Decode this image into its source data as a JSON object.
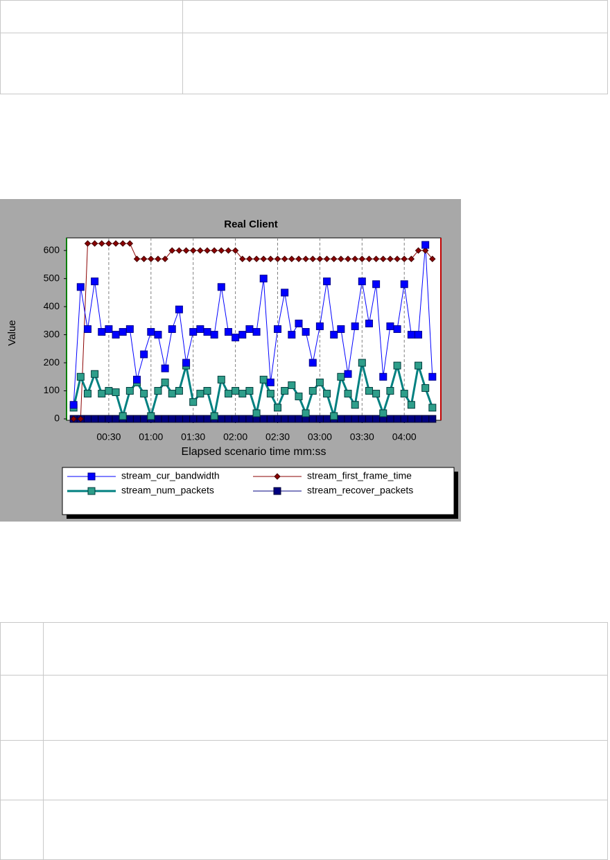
{
  "chart_data": {
    "type": "line",
    "title": "Real Client",
    "y_label": "Value",
    "x_label": "Elapsed scenario time mm:ss",
    "x": [
      5,
      10,
      15,
      20,
      25,
      30,
      35,
      40,
      45,
      50,
      55,
      60,
      65,
      70,
      75,
      80,
      85,
      90,
      95,
      100,
      105,
      110,
      115,
      120,
      125,
      130,
      135,
      140,
      145,
      150,
      155,
      160,
      165,
      170,
      175,
      180,
      185,
      190,
      195,
      200,
      205,
      210,
      215,
      220,
      225,
      230,
      235,
      240,
      245,
      250,
      255,
      260
    ],
    "xlim": [
      0,
      266
    ],
    "xticks": [
      {
        "value": 30,
        "label": "00:30"
      },
      {
        "value": 60,
        "label": "01:00"
      },
      {
        "value": 90,
        "label": "01:30"
      },
      {
        "value": 120,
        "label": "02:00"
      },
      {
        "value": 150,
        "label": "02:30"
      },
      {
        "value": 180,
        "label": "03:00"
      },
      {
        "value": 210,
        "label": "03:30"
      },
      {
        "value": 240,
        "label": "04:00"
      }
    ],
    "ylim": [
      -5,
      645
    ],
    "yticks": [
      0,
      100,
      200,
      300,
      400,
      500,
      600
    ],
    "grid": true,
    "legend": "bottom",
    "series": [
      {
        "name": "stream_cur_bandwidth",
        "color": "#0000ff",
        "marker": "square",
        "values": [
          50,
          470,
          320,
          490,
          310,
          320,
          300,
          310,
          320,
          140,
          230,
          310,
          300,
          180,
          320,
          390,
          200,
          310,
          320,
          310,
          300,
          470,
          310,
          290,
          300,
          320,
          310,
          500,
          130,
          320,
          450,
          300,
          340,
          310,
          200,
          330,
          490,
          300,
          320,
          160,
          330,
          490,
          340,
          480,
          150,
          330,
          320,
          480,
          300,
          300,
          620,
          150
        ]
      },
      {
        "name": "stream_first_frame_time",
        "color": "#8b0000",
        "marker": "diamond",
        "values": [
          0,
          0,
          625,
          625,
          625,
          625,
          625,
          625,
          625,
          570,
          570,
          570,
          570,
          570,
          600,
          600,
          600,
          600,
          600,
          600,
          600,
          600,
          600,
          600,
          570,
          570,
          570,
          570,
          570,
          570,
          570,
          570,
          570,
          570,
          570,
          570,
          570,
          570,
          570,
          570,
          570,
          570,
          570,
          570,
          570,
          570,
          570,
          570,
          570,
          600,
          600,
          570
        ]
      },
      {
        "name": "stream_num_packets",
        "color": "#008080",
        "marker": "square",
        "values": [
          40,
          150,
          90,
          160,
          90,
          100,
          95,
          10,
          100,
          130,
          90,
          10,
          100,
          130,
          90,
          100,
          190,
          60,
          90,
          100,
          10,
          140,
          90,
          100,
          90,
          100,
          20,
          140,
          90,
          40,
          100,
          120,
          80,
          20,
          100,
          130,
          90,
          10,
          150,
          90,
          50,
          200,
          100,
          90,
          20,
          100,
          190,
          90,
          50,
          190,
          110,
          40
        ]
      },
      {
        "name": "stream_recover_packets",
        "color": "#000080",
        "marker": "square",
        "values": [
          0,
          0,
          0,
          0,
          0,
          0,
          0,
          0,
          0,
          0,
          0,
          0,
          0,
          0,
          0,
          0,
          0,
          0,
          0,
          0,
          0,
          0,
          0,
          0,
          0,
          0,
          0,
          0,
          0,
          0,
          0,
          0,
          0,
          0,
          0,
          0,
          0,
          0,
          0,
          0,
          0,
          0,
          0,
          0,
          0,
          0,
          0,
          0,
          0,
          0,
          0,
          0
        ]
      }
    ]
  }
}
